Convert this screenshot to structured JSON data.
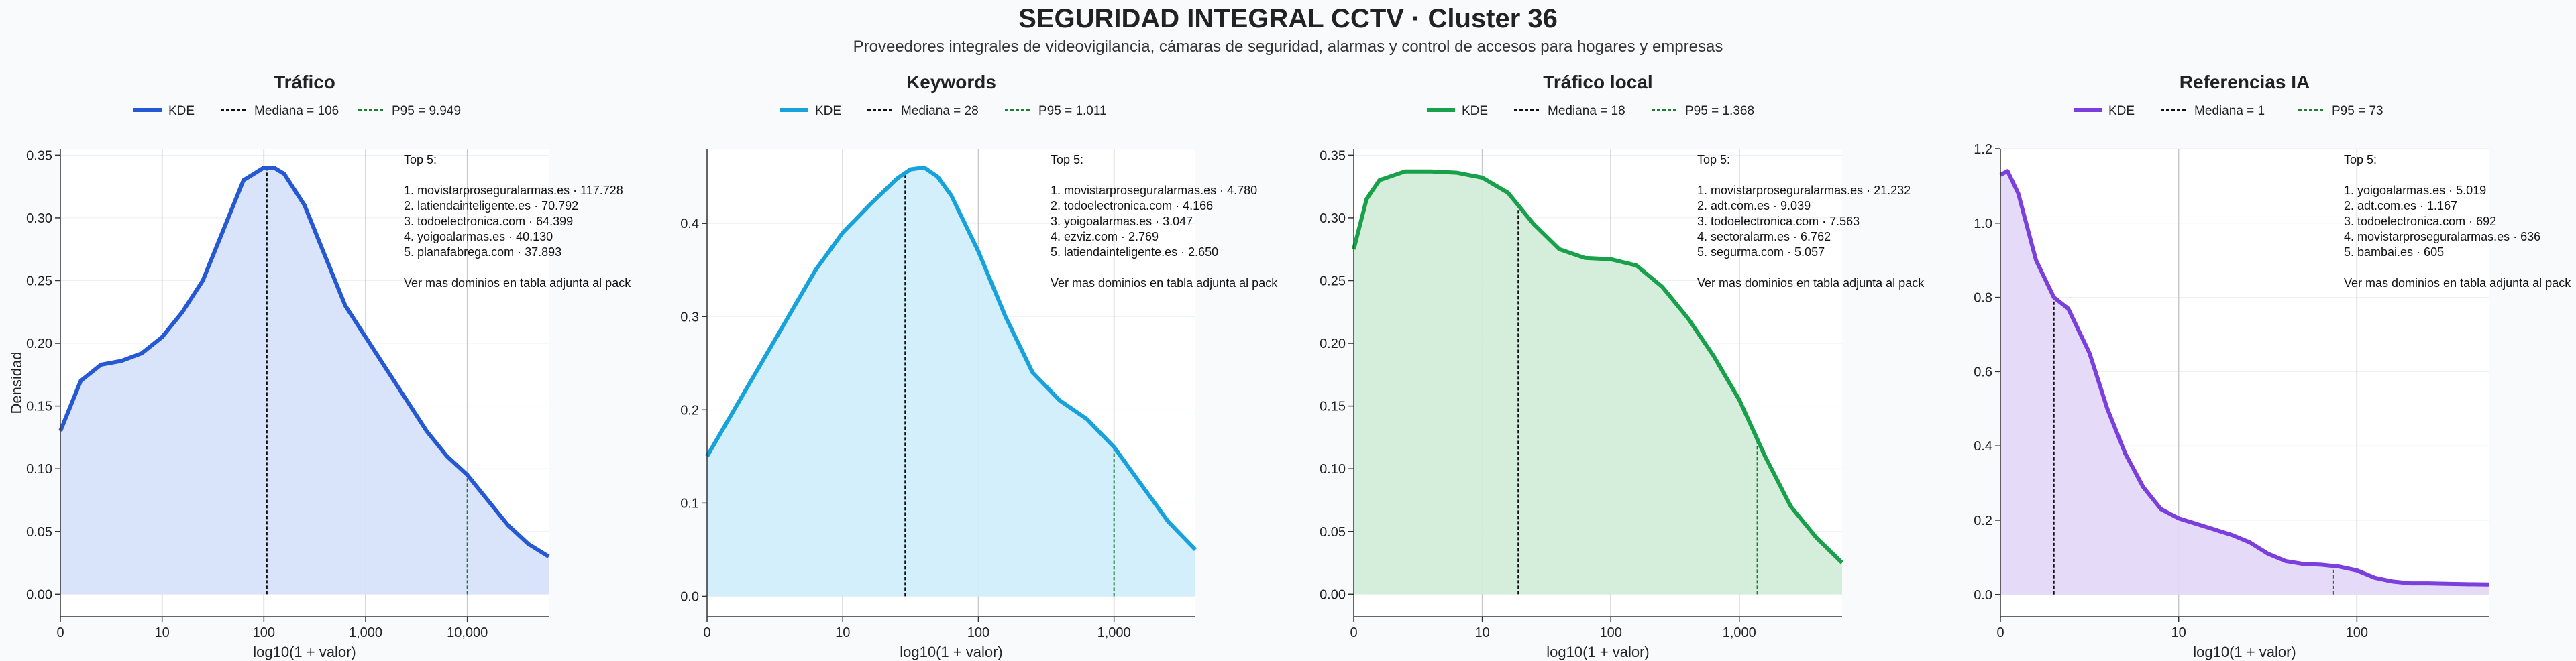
{
  "title": "SEGURIDAD INTEGRAL CCTV · Cluster 36",
  "subtitle": "Proveedores integrales de videovigilancia, cámaras de seguridad, alarmas y control de accesos para hogares y empresas",
  "chart_data": [
    {
      "type": "area",
      "title": "Tráfico",
      "xlabel": "log10(1 + valor)",
      "ylabel": "Densidad",
      "color": "#2558d3",
      "fill": "#d7e1fa",
      "x_ticks": [
        "0",
        "10",
        "100",
        "1,000",
        "10,000"
      ],
      "x_tick_pos": [
        0,
        1,
        2,
        3,
        4
      ],
      "xlim": [
        0,
        4.8
      ],
      "ylim": [
        -0.018,
        0.355
      ],
      "y_ticks": [
        "0.00",
        "0.05",
        "0.10",
        "0.15",
        "0.20",
        "0.25",
        "0.30",
        "0.35"
      ],
      "y_tick_vals": [
        0,
        0.05,
        0.1,
        0.15,
        0.2,
        0.25,
        0.3,
        0.35
      ],
      "series": [
        {
          "x": [
            0,
            0.2,
            0.4,
            0.6,
            0.8,
            1.0,
            1.2,
            1.4,
            1.6,
            1.8,
            2.0,
            2.1,
            2.2,
            2.4,
            2.6,
            2.8,
            3.0,
            3.2,
            3.4,
            3.6,
            3.8,
            4.0,
            4.2,
            4.4,
            4.6,
            4.8
          ],
          "y": [
            0.13,
            0.17,
            0.183,
            0.186,
            0.192,
            0.205,
            0.225,
            0.25,
            0.29,
            0.33,
            0.34,
            0.34,
            0.335,
            0.31,
            0.27,
            0.23,
            0.205,
            0.18,
            0.155,
            0.13,
            0.11,
            0.095,
            0.075,
            0.055,
            0.04,
            0.03
          ]
        }
      ],
      "legend": [
        "KDE",
        "Mediana = 106",
        "P95 = 9.949"
      ],
      "median": 2.03,
      "p95": 4.0,
      "annotation": [
        "Top 5:",
        "",
        "1. movistarproseguralarmas.es · 117.728",
        "2. latiendainteligente.es · 70.792",
        "3. todoelectronica.com · 64.399",
        "4. yoigoalarmas.es · 40.130",
        "5. planafabrega.com · 37.893",
        "",
        "Ver mas dominios en tabla adjunta al pack"
      ]
    },
    {
      "type": "area",
      "title": "Keywords",
      "xlabel": "log10(1 + valor)",
      "ylabel": "",
      "color": "#17a2dc",
      "fill": "#d1eefb",
      "x_ticks": [
        "0",
        "10",
        "100",
        "1,000"
      ],
      "x_tick_pos": [
        0,
        1,
        2,
        3
      ],
      "xlim": [
        0,
        3.6
      ],
      "ylim": [
        -0.022,
        0.48
      ],
      "y_ticks": [
        "0.0",
        "0.1",
        "0.2",
        "0.3",
        "0.4"
      ],
      "y_tick_vals": [
        0,
        0.1,
        0.2,
        0.3,
        0.4
      ],
      "series": [
        {
          "x": [
            0,
            0.2,
            0.4,
            0.6,
            0.8,
            1.0,
            1.2,
            1.4,
            1.5,
            1.6,
            1.7,
            1.8,
            2.0,
            2.2,
            2.4,
            2.6,
            2.8,
            3.0,
            3.2,
            3.4,
            3.6
          ],
          "y": [
            0.15,
            0.2,
            0.25,
            0.3,
            0.35,
            0.39,
            0.42,
            0.448,
            0.458,
            0.46,
            0.45,
            0.43,
            0.37,
            0.3,
            0.24,
            0.21,
            0.19,
            0.16,
            0.12,
            0.08,
            0.05
          ]
        }
      ],
      "legend": [
        "KDE",
        "Mediana = 28",
        "P95 = 1.011"
      ],
      "median": 1.46,
      "p95": 3.0,
      "annotation": [
        "Top 5:",
        "",
        "1. movistarproseguralarmas.es · 4.780",
        "2. todoelectronica.com · 4.166",
        "3. yoigoalarmas.es · 3.047",
        "4. ezviz.com · 2.769",
        "5. latiendainteligente.es · 2.650",
        "",
        "Ver mas dominios en tabla adjunta al pack"
      ]
    },
    {
      "type": "area",
      "title": "Tráfico local",
      "xlabel": "log10(1 + valor)",
      "ylabel": "",
      "color": "#18a04a",
      "fill": "#d3ecd9",
      "x_ticks": [
        "0",
        "10",
        "100",
        "1,000"
      ],
      "x_tick_pos": [
        0,
        1,
        2,
        3
      ],
      "xlim": [
        0,
        3.8
      ],
      "ylim": [
        -0.018,
        0.355
      ],
      "y_ticks": [
        "0.00",
        "0.05",
        "0.10",
        "0.15",
        "0.20",
        "0.25",
        "0.30",
        "0.35"
      ],
      "y_tick_vals": [
        0,
        0.05,
        0.1,
        0.15,
        0.2,
        0.25,
        0.3,
        0.35
      ],
      "series": [
        {
          "x": [
            0,
            0.1,
            0.2,
            0.4,
            0.6,
            0.8,
            1.0,
            1.2,
            1.4,
            1.6,
            1.8,
            2.0,
            2.2,
            2.4,
            2.6,
            2.8,
            3.0,
            3.2,
            3.4,
            3.6,
            3.8
          ],
          "y": [
            0.275,
            0.315,
            0.33,
            0.337,
            0.337,
            0.336,
            0.332,
            0.32,
            0.295,
            0.275,
            0.268,
            0.267,
            0.262,
            0.245,
            0.22,
            0.19,
            0.155,
            0.11,
            0.07,
            0.045,
            0.025
          ]
        }
      ],
      "legend": [
        "KDE",
        "Mediana = 18",
        "P95 = 1.368"
      ],
      "median": 1.28,
      "p95": 3.14,
      "annotation": [
        "Top 5:",
        "",
        "1. movistarproseguralarmas.es · 21.232",
        "2. adt.com.es · 9.039",
        "3. todoelectronica.com · 7.563",
        "4. sectoralarm.es · 6.762",
        "5. segurma.com · 5.057",
        "",
        "Ver mas dominios en tabla adjunta al pack"
      ]
    },
    {
      "type": "area",
      "title": "Referencias IA",
      "xlabel": "log10(1 + valor)",
      "ylabel": "",
      "color": "#7a3fdc",
      "fill": "#e4d9f8",
      "x_ticks": [
        "0",
        "10",
        "100"
      ],
      "x_tick_pos": [
        0,
        1,
        2
      ],
      "xlim": [
        0,
        2.74
      ],
      "ylim": [
        -0.06,
        1.2
      ],
      "y_ticks": [
        "0.0",
        "0.2",
        "0.4",
        "0.6",
        "0.8",
        "1.0",
        "1.2"
      ],
      "y_tick_vals": [
        0,
        0.2,
        0.4,
        0.6,
        0.8,
        1.0,
        1.2
      ],
      "series": [
        {
          "x": [
            0,
            0.04,
            0.1,
            0.2,
            0.3,
            0.38,
            0.5,
            0.6,
            0.7,
            0.8,
            0.9,
            1.0,
            1.1,
            1.2,
            1.3,
            1.4,
            1.5,
            1.6,
            1.7,
            1.8,
            1.9,
            2.0,
            2.1,
            2.2,
            2.3,
            2.4,
            2.5,
            2.6,
            2.74
          ],
          "y": [
            1.13,
            1.14,
            1.08,
            0.9,
            0.8,
            0.77,
            0.65,
            0.5,
            0.38,
            0.29,
            0.23,
            0.205,
            0.19,
            0.175,
            0.16,
            0.14,
            0.11,
            0.09,
            0.082,
            0.08,
            0.075,
            0.065,
            0.045,
            0.035,
            0.03,
            0.03,
            0.029,
            0.028,
            0.027
          ]
        }
      ],
      "legend": [
        "KDE",
        "Mediana = 1",
        "P95 = 73"
      ],
      "median": 0.3,
      "p95": 1.87,
      "annotation": [
        "Top 5:",
        "",
        "1. yoigoalarmas.es · 5.019",
        "2. adt.com.es · 1.167",
        "3. todoelectronica.com · 692",
        "4. movistarproseguralarmas.es · 636",
        "5. bambai.es · 605",
        "",
        "Ver mas dominios en tabla adjunta al pack"
      ]
    }
  ]
}
